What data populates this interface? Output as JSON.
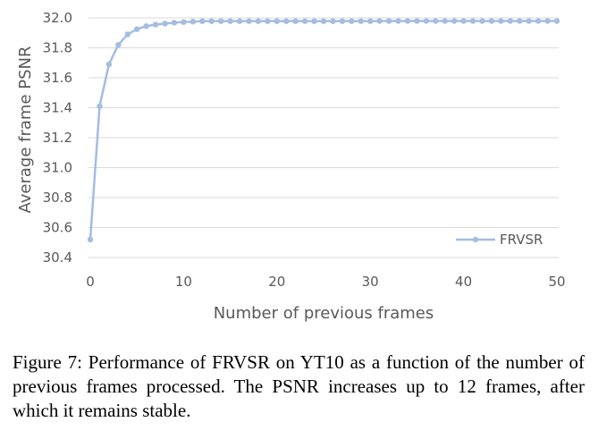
{
  "chart_data": {
    "type": "line",
    "xlabel": "Number of previous frames",
    "ylabel": "Average frame PSNR",
    "xlim": [
      0,
      50
    ],
    "ylim": [
      30.4,
      32.0
    ],
    "x_ticks": [
      "0",
      "10",
      "20",
      "30",
      "40",
      "50"
    ],
    "y_ticks": [
      "30.4",
      "30.6",
      "30.8",
      "31.0",
      "31.2",
      "31.4",
      "31.6",
      "31.8",
      "32.0"
    ],
    "grid": "horizontal",
    "legend_position": "bottom-right",
    "series": [
      {
        "name": "FRVSR",
        "color": "#a4bde0",
        "x": [
          0,
          1,
          2,
          3,
          4,
          5,
          6,
          7,
          8,
          9,
          10,
          11,
          12,
          13,
          14,
          15,
          16,
          17,
          18,
          19,
          20,
          21,
          22,
          23,
          24,
          25,
          26,
          27,
          28,
          29,
          30,
          31,
          32,
          33,
          34,
          35,
          36,
          37,
          38,
          39,
          40,
          41,
          42,
          43,
          44,
          45,
          46,
          47,
          48,
          49,
          50
        ],
        "values": [
          30.52,
          31.41,
          31.69,
          31.82,
          31.89,
          31.925,
          31.945,
          31.955,
          31.962,
          31.968,
          31.972,
          31.975,
          31.978,
          31.978,
          31.978,
          31.978,
          31.978,
          31.978,
          31.978,
          31.978,
          31.978,
          31.978,
          31.978,
          31.978,
          31.978,
          31.978,
          31.978,
          31.978,
          31.978,
          31.978,
          31.978,
          31.979,
          31.979,
          31.979,
          31.979,
          31.979,
          31.979,
          31.979,
          31.979,
          31.979,
          31.979,
          31.979,
          31.979,
          31.979,
          31.979,
          31.979,
          31.979,
          31.979,
          31.979,
          31.979,
          31.979
        ]
      }
    ]
  },
  "caption": "Figure 7: Performance of FRVSR on YT10 as a function of the number of previous frames processed. The PSNR increases up to 12 frames, after which it remains stable."
}
